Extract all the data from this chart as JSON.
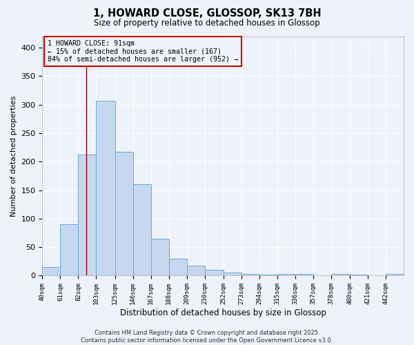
{
  "title": "1, HOWARD CLOSE, GLOSSOP, SK13 7BH",
  "subtitle": "Size of property relative to detached houses in Glossop",
  "xlabel": "Distribution of detached houses by size in Glossop",
  "ylabel": "Number of detached properties",
  "bar_color": "#c5d8f0",
  "bar_edge_color": "#6aaad4",
  "background_color": "#eef2fa",
  "grid_color": "white",
  "vline_value": 91,
  "vline_color": "#8b0000",
  "annotation_text": "1 HOWARD CLOSE: 91sqm\n← 15% of detached houses are smaller (167)\n84% of semi-detached houses are larger (952) →",
  "annotation_box_color": "#cc0000",
  "bin_edges": [
    40,
    61,
    82,
    103,
    125,
    146,
    167,
    188,
    209,
    230,
    252,
    273,
    294,
    315,
    336,
    357,
    378,
    400,
    421,
    442,
    463
  ],
  "bin_counts": [
    15,
    90,
    212,
    307,
    217,
    160,
    65,
    30,
    18,
    10,
    6,
    3,
    2,
    3,
    3,
    0,
    3,
    2,
    1,
    3
  ],
  "ylim": [
    0,
    420
  ],
  "yticks": [
    0,
    50,
    100,
    150,
    200,
    250,
    300,
    350,
    400
  ],
  "footer_text": "Contains HM Land Registry data © Crown copyright and database right 2025.\nContains public sector information licensed under the Open Government Licence v3.0."
}
